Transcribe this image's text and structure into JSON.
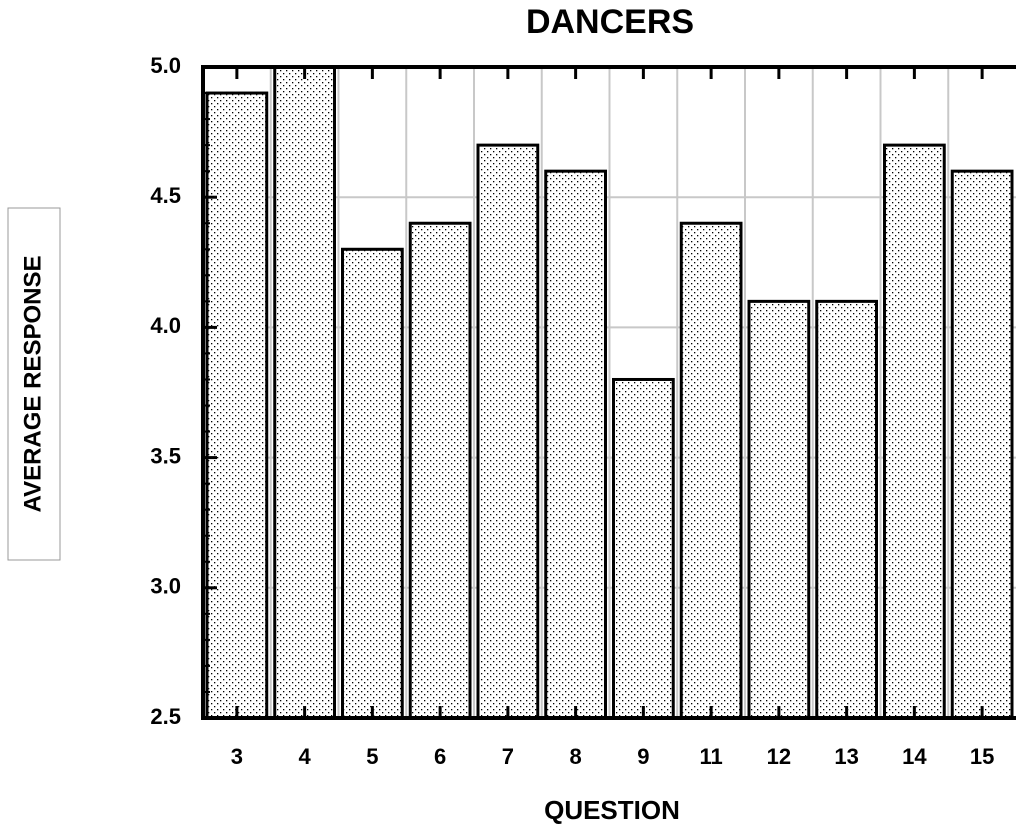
{
  "chart_data": {
    "type": "bar",
    "title": "DANCERS",
    "x_label": "QUESTION",
    "y_label": "AVERAGE RESPONSE",
    "categories": [
      "3",
      "4",
      "5",
      "6",
      "7",
      "8",
      "9",
      "11",
      "12",
      "13",
      "14",
      "15"
    ],
    "values": [
      4.9,
      5.0,
      4.3,
      4.4,
      4.7,
      4.6,
      3.8,
      4.4,
      4.1,
      4.1,
      4.7,
      4.6
    ],
    "color": "#000000",
    "ylim": [
      2.5,
      5.0
    ],
    "yticks": [
      2.5,
      {
        "value": 3,
        "label": "3.0"
      },
      3.5,
      {
        "value": 4,
        "label": "4.0"
      },
      4.5,
      {
        "value": 5,
        "label": "5.0"
      }
    ],
    "grid": true
  }
}
